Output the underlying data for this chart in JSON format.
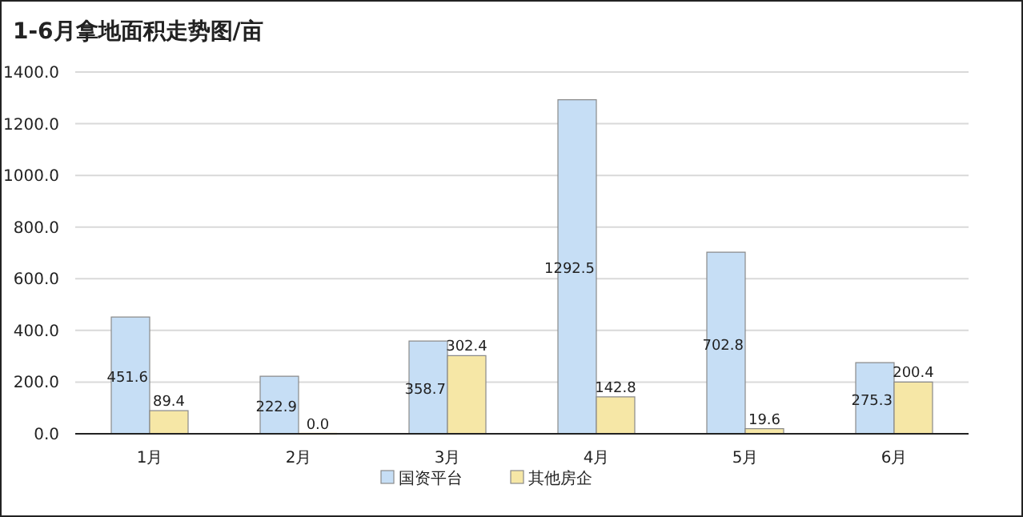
{
  "chart_data": {
    "type": "bar",
    "title": "1-6月拿地面积走势图/亩",
    "categories": [
      "1月",
      "2月",
      "3月",
      "4月",
      "5月",
      "6月"
    ],
    "series": [
      {
        "name": "国资平台",
        "color": "#c6def5",
        "values": [
          451.6,
          222.9,
          358.7,
          1292.5,
          702.8,
          275.3
        ],
        "value_labels": [
          "451.6",
          "222.9",
          "358.7",
          "1292.5",
          "702.8",
          "275.3"
        ]
      },
      {
        "name": "其他房企",
        "color": "#f6e7a6",
        "values": [
          89.4,
          0,
          302.4,
          142.8,
          19.6,
          200.4
        ],
        "value_labels": [
          "89.4",
          "0.0",
          "302.4",
          "142.8",
          "19.6",
          "200.4"
        ]
      }
    ],
    "ylim": [
      0,
      1400
    ],
    "yticks": [
      {
        "value": 0,
        "label": "0.0"
      },
      {
        "value": 200,
        "label": "200.0"
      },
      {
        "value": 400,
        "label": "400.0"
      },
      {
        "value": 600,
        "label": "600.0"
      },
      {
        "value": 800,
        "label": "800.0"
      },
      {
        "value": 1000,
        "label": "1000.0"
      },
      {
        "value": 1200,
        "label": "1200.0"
      },
      {
        "value": 1400,
        "label": "1400.0"
      }
    ],
    "grid": "y",
    "legend": "bottom"
  }
}
